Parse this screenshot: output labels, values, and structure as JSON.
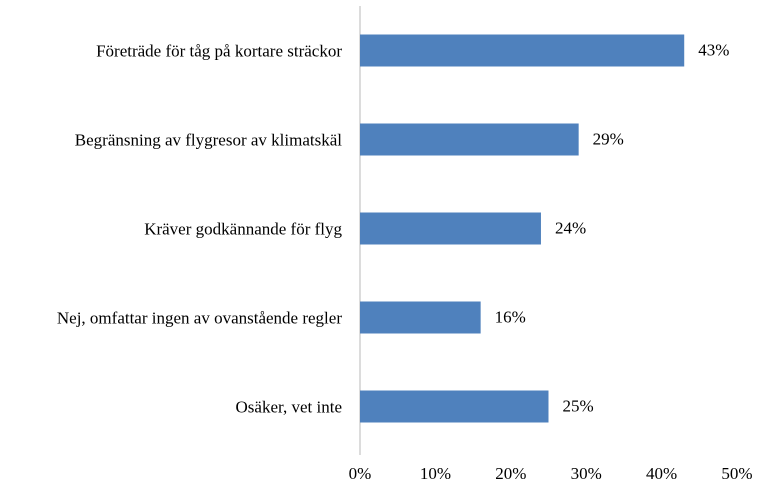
{
  "chart_data": {
    "type": "bar",
    "orientation": "horizontal",
    "categories": [
      "Företräde för tåg på kortare sträckor",
      "Begränsning av flygresor av klimatskäl",
      "Kräver godkännande för flyg",
      "Nej, omfattar ingen av ovanstående regler",
      "Osäker, vet inte"
    ],
    "values": [
      43,
      29,
      24,
      16,
      25
    ],
    "value_labels": [
      "43%",
      "29%",
      "24%",
      "16%",
      "25%"
    ],
    "color": "#4f81bd",
    "xlim": [
      0,
      50
    ],
    "xticks": [
      {
        "value": 0,
        "label": "0%"
      },
      {
        "value": 10,
        "label": "10%"
      },
      {
        "value": 20,
        "label": "20%"
      },
      {
        "value": 30,
        "label": "30%"
      },
      {
        "value": 40,
        "label": "40%"
      },
      {
        "value": 50,
        "label": "50%"
      }
    ],
    "grid": false
  }
}
